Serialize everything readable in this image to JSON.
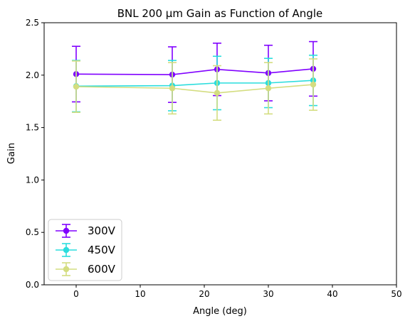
{
  "chart_data": {
    "type": "line",
    "title": "BNL 200 µm Gain as Function of Angle",
    "xlabel": "Angle (deg)",
    "ylabel": "Gain",
    "xlim": [
      -5,
      50
    ],
    "ylim": [
      0.0,
      2.5
    ],
    "x_ticks": [
      0,
      10,
      20,
      30,
      40,
      50
    ],
    "y_ticks": [
      0.0,
      0.5,
      1.0,
      1.5,
      2.0,
      2.5
    ],
    "x_tick_labels": [
      "0",
      "10",
      "20",
      "30",
      "40",
      "50"
    ],
    "y_tick_labels": [
      "0.0",
      "0.5",
      "1.0",
      "1.5",
      "2.0",
      "2.5"
    ],
    "grid": false,
    "legend_position": "lower-left",
    "x": [
      0,
      15,
      22,
      30,
      37
    ],
    "series": [
      {
        "name": "300V",
        "color": "#8000ff",
        "values": [
          2.01,
          2.005,
          2.055,
          2.02,
          2.06
        ],
        "error": [
          0.265,
          0.265,
          0.25,
          0.265,
          0.26
        ]
      },
      {
        "name": "450V",
        "color": "#2adddd",
        "values": [
          1.895,
          1.9,
          1.925,
          1.925,
          1.95
        ],
        "error": [
          0.245,
          0.24,
          0.255,
          0.235,
          0.24
        ]
      },
      {
        "name": "600V",
        "color": "#d4dd80",
        "values": [
          1.89,
          1.875,
          1.83,
          1.875,
          1.91
        ],
        "error": [
          0.245,
          0.245,
          0.26,
          0.245,
          0.245
        ]
      }
    ]
  }
}
